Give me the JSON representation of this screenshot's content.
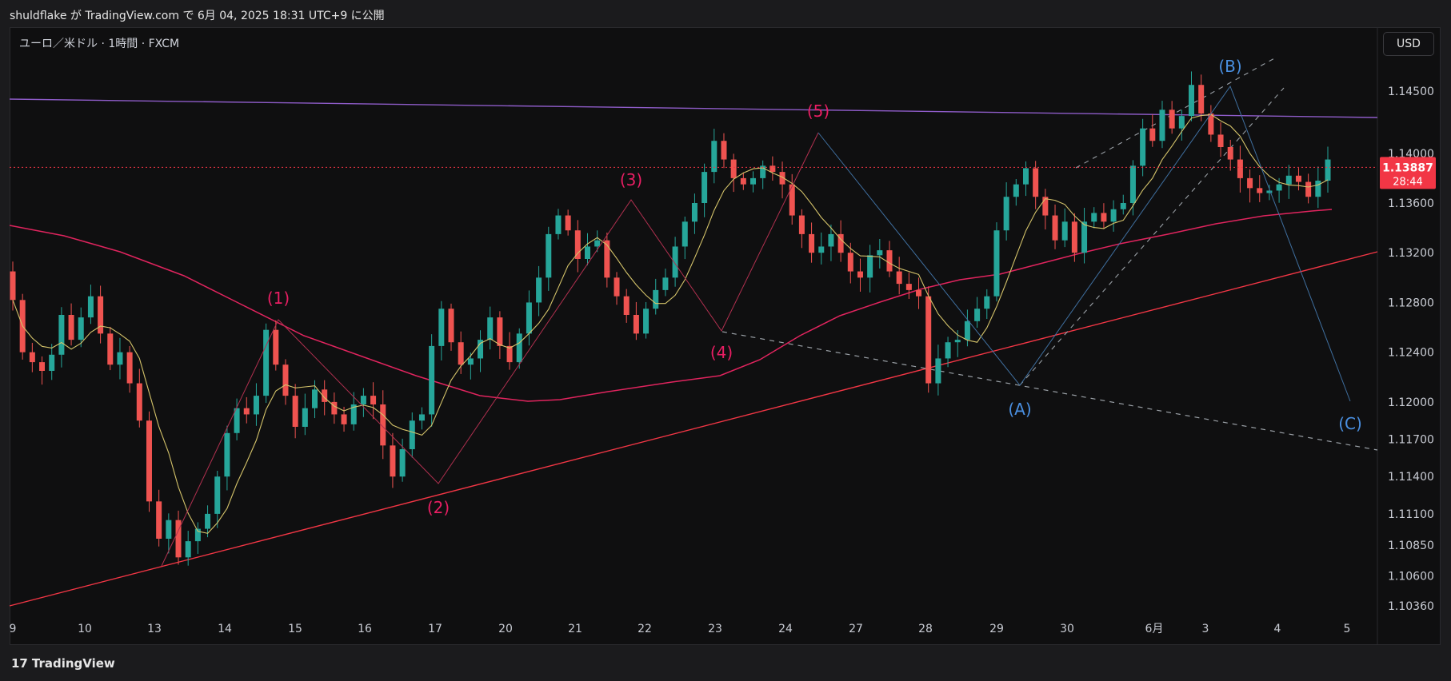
{
  "header": {
    "publish_text": "shuldflake が TradingView.com で 6月 04, 2025 18:31 UTC+9 に公開"
  },
  "symbol": {
    "label": "ユーロ／米ドル · 1時間 · FXCM"
  },
  "currency_button": {
    "label": "USD"
  },
  "footer": {
    "logo": "17",
    "brand": "TradingView"
  },
  "colors": {
    "up": "#26a69a",
    "down": "#ef5350",
    "label_pink": "#e91e63",
    "label_blue": "#4a90e2",
    "ma_fast": "#d4c36a",
    "ma_slow": "#e0245e",
    "support": "#f23645",
    "resistance": "#8e5cc8",
    "price_tag": "#f23645"
  },
  "chart_data": {
    "type": "candlestick",
    "symbol": "EURUSD",
    "timeframe": "1H",
    "x_axis_ticks": [
      "9",
      "10",
      "13",
      "14",
      "15",
      "16",
      "17",
      "20",
      "21",
      "22",
      "23",
      "24",
      "27",
      "28",
      "29",
      "30",
      "6月",
      "3",
      "4",
      "5"
    ],
    "y_axis_ticks": [
      "1.14500",
      "1.14000",
      "1.13600",
      "1.13200",
      "1.12800",
      "1.12400",
      "1.12000",
      "1.11700",
      "1.11400",
      "1.11100",
      "1.10850",
      "1.10600",
      "1.10360"
    ],
    "y_range": [
      1.1015,
      1.148
    ],
    "current_price": {
      "value": "1.13887",
      "countdown": "28:44"
    },
    "wave_labels": [
      {
        "text": "(1)",
        "date": "14 late",
        "price": 1.1263,
        "color": "pink"
      },
      {
        "text": "(2)",
        "date": "17 mid",
        "price": 1.1135,
        "color": "pink"
      },
      {
        "text": "(3)",
        "date": "21 late",
        "price": 1.1363,
        "color": "pink"
      },
      {
        "text": "(4)",
        "date": "23 early",
        "price": 1.1253,
        "color": "pink"
      },
      {
        "text": "(5)",
        "date": "25 early",
        "price": 1.1418,
        "color": "pink"
      },
      {
        "text": "(A)",
        "date": "29 late",
        "price": 1.121,
        "color": "blue"
      },
      {
        "text": "(B)",
        "date": "3 late",
        "price": 1.1455,
        "color": "blue"
      },
      {
        "text": "(C)",
        "date": "5",
        "price": 1.118,
        "color": "blue"
      }
    ],
    "trendlines": [
      {
        "name": "horizontal-resistance",
        "from": [
          8.5,
          1.1445
        ],
        "to": [
          5.4,
          1.1425
        ]
      },
      {
        "name": "rising-support",
        "from": [
          8.5,
          1.1035
        ],
        "to": [
          5.4,
          1.132
        ]
      },
      {
        "name": "descending-dashed",
        "from": [
          23.1,
          1.1252
        ],
        "to": [
          5.4,
          1.1159
        ]
      }
    ],
    "series": [
      {
        "type": "ohlc",
        "approx_path": [
          [
            1.1305,
            1.1282
          ],
          [
            1.1282,
            1.124
          ],
          [
            1.124,
            1.1232
          ],
          [
            1.1232,
            1.1225
          ],
          [
            1.1225,
            1.1238
          ],
          [
            1.1238,
            1.127
          ],
          [
            1.127,
            1.125
          ],
          [
            1.125,
            1.1268
          ],
          [
            1.1268,
            1.1285
          ],
          [
            1.1285,
            1.1255
          ],
          [
            1.1255,
            1.123
          ],
          [
            1.123,
            1.124
          ],
          [
            1.124,
            1.1215
          ],
          [
            1.1215,
            1.1185
          ],
          [
            1.1185,
            1.112
          ],
          [
            1.112,
            1.109
          ],
          [
            1.109,
            1.1105
          ],
          [
            1.1105,
            1.1075
          ],
          [
            1.1075,
            1.1088
          ],
          [
            1.1088,
            1.1098
          ],
          [
            1.1098,
            1.111
          ],
          [
            1.111,
            1.114
          ],
          [
            1.114,
            1.1175
          ],
          [
            1.1175,
            1.1195
          ],
          [
            1.1195,
            1.119
          ],
          [
            1.119,
            1.1205
          ],
          [
            1.1205,
            1.1258
          ],
          [
            1.1258,
            1.123
          ],
          [
            1.123,
            1.1205
          ],
          [
            1.1205,
            1.118
          ],
          [
            1.118,
            1.1195
          ],
          [
            1.1195,
            1.121
          ],
          [
            1.121,
            1.12
          ],
          [
            1.12,
            1.119
          ],
          [
            1.119,
            1.1182
          ],
          [
            1.1182,
            1.1198
          ],
          [
            1.1198,
            1.1205
          ],
          [
            1.1205,
            1.1198
          ],
          [
            1.1198,
            1.1165
          ],
          [
            1.1165,
            1.114
          ],
          [
            1.114,
            1.1162
          ],
          [
            1.1162,
            1.1185
          ],
          [
            1.1185,
            1.119
          ],
          [
            1.119,
            1.1245
          ],
          [
            1.1245,
            1.1275
          ],
          [
            1.1275,
            1.1248
          ],
          [
            1.1248,
            1.123
          ],
          [
            1.123,
            1.1235
          ],
          [
            1.1235,
            1.125
          ],
          [
            1.125,
            1.1268
          ],
          [
            1.1268,
            1.1245
          ],
          [
            1.1245,
            1.1232
          ],
          [
            1.1232,
            1.1255
          ],
          [
            1.1255,
            1.128
          ],
          [
            1.128,
            1.13
          ],
          [
            1.13,
            1.1335
          ],
          [
            1.1335,
            1.135
          ],
          [
            1.135,
            1.1338
          ],
          [
            1.1338,
            1.1315
          ],
          [
            1.1315,
            1.1325
          ],
          [
            1.1325,
            1.133
          ],
          [
            1.133,
            1.13
          ],
          [
            1.13,
            1.1285
          ],
          [
            1.1285,
            1.127
          ],
          [
            1.127,
            1.1255
          ],
          [
            1.1255,
            1.1275
          ],
          [
            1.1275,
            1.129
          ],
          [
            1.129,
            1.13
          ],
          [
            1.13,
            1.1325
          ],
          [
            1.1325,
            1.1345
          ],
          [
            1.1345,
            1.136
          ],
          [
            1.136,
            1.1385
          ],
          [
            1.1385,
            1.141
          ],
          [
            1.141,
            1.1395
          ],
          [
            1.1395,
            1.138
          ],
          [
            1.138,
            1.1375
          ],
          [
            1.1375,
            1.138
          ],
          [
            1.138,
            1.139
          ],
          [
            1.139,
            1.1385
          ],
          [
            1.1385,
            1.1375
          ],
          [
            1.1375,
            1.135
          ],
          [
            1.135,
            1.1335
          ],
          [
            1.1335,
            1.132
          ],
          [
            1.132,
            1.1325
          ],
          [
            1.1325,
            1.1335
          ],
          [
            1.1335,
            1.132
          ],
          [
            1.132,
            1.1305
          ],
          [
            1.1305,
            1.13
          ],
          [
            1.13,
            1.1318
          ],
          [
            1.1318,
            1.1322
          ],
          [
            1.1322,
            1.1305
          ],
          [
            1.1305,
            1.1295
          ],
          [
            1.1295,
            1.129
          ],
          [
            1.129,
            1.1285
          ],
          [
            1.1285,
            1.1215
          ],
          [
            1.1215,
            1.1235
          ],
          [
            1.1235,
            1.1248
          ],
          [
            1.1248,
            1.125
          ],
          [
            1.125,
            1.1265
          ],
          [
            1.1265,
            1.1275
          ],
          [
            1.1275,
            1.1285
          ],
          [
            1.1285,
            1.1338
          ],
          [
            1.1338,
            1.1365
          ],
          [
            1.1365,
            1.1375
          ],
          [
            1.1375,
            1.1388
          ],
          [
            1.1388,
            1.1365
          ],
          [
            1.1365,
            1.135
          ],
          [
            1.135,
            1.133
          ],
          [
            1.133,
            1.1345
          ],
          [
            1.1345,
            1.132
          ],
          [
            1.132,
            1.1345
          ],
          [
            1.1345,
            1.1352
          ],
          [
            1.1352,
            1.1345
          ],
          [
            1.1345,
            1.1355
          ],
          [
            1.1355,
            1.136
          ],
          [
            1.136,
            1.139
          ],
          [
            1.139,
            1.142
          ],
          [
            1.142,
            1.141
          ],
          [
            1.141,
            1.1435
          ],
          [
            1.1435,
            1.142
          ],
          [
            1.142,
            1.143
          ],
          [
            1.143,
            1.1455
          ],
          [
            1.1455,
            1.1432
          ],
          [
            1.1432,
            1.1415
          ],
          [
            1.1415,
            1.1405
          ],
          [
            1.1405,
            1.1395
          ],
          [
            1.1395,
            1.138
          ],
          [
            1.138,
            1.1372
          ],
          [
            1.1372,
            1.1368
          ],
          [
            1.1368,
            1.137
          ],
          [
            1.137,
            1.1375
          ],
          [
            1.1375,
            1.1382
          ],
          [
            1.1382,
            1.1377
          ],
          [
            1.1377,
            1.1365
          ],
          [
            1.1365,
            1.1378
          ],
          [
            1.1378,
            1.1395
          ]
        ]
      },
      {
        "type": "ma_fast",
        "approx": true
      },
      {
        "type": "ma_slow",
        "approx": true
      }
    ]
  }
}
